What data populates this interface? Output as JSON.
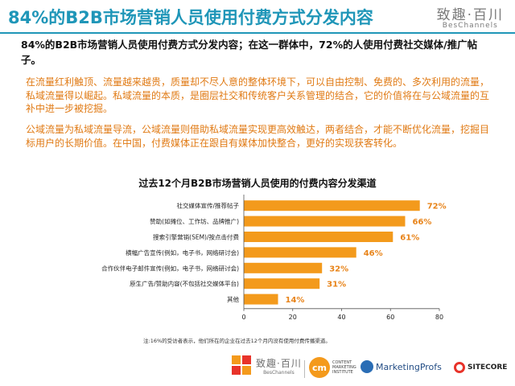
{
  "page": {
    "title": "84%的B2B市场营销人员使用付费方式分发内容",
    "subtitle": "84%的B2B市场营销人员使用付费方式分发内容；在这一群体中，72%的人使用付费社交媒体/推广帖子。",
    "paragraph1": "在流量红利触顶、流量越来越贵，质量却不尽人意的整体环境下，可以自由控制、免费的、多次利用的流量，私域流量得以崛起。私域流量的本质，是圈层社交和传统客户关系管理的结合，它的价值将在与公域流量的互补中进一步被挖掘。",
    "paragraph2": "公域流量为私域流量导流，公域流量则借助私域流量实现更高效触达，两者结合，才能不断优化流量，挖掘目标用户的长期价值。在中国，付费媒体正在跟自有媒体加快整合，更好的实现获客转化。",
    "footnote": "注:16%的受访者表示，他们所在的企业在过去12个月内没有使用付费传播渠道。"
  },
  "brand": {
    "name_cn": "致趣·百川",
    "name_en": "BesChannels"
  },
  "footer": {
    "cmi_mark": "cm",
    "cmi_words": [
      "CONTENT",
      "MARKETING",
      "INSTITUTE"
    ],
    "marketingprofs": "MarketingProfs",
    "sitecore": "SITECORE"
  },
  "colors": {
    "title": "#1f96b8",
    "bar": "#f39a1c",
    "value_label": "#e8841a",
    "paragraph": "#e07a14"
  },
  "chart_data": {
    "type": "bar",
    "orientation": "horizontal",
    "title": "过去12个月B2B市场营销人员使用的付费内容分发渠道",
    "categories": [
      "社交媒体宣传/推荐帖子",
      "赞助(如摊位、工作坊、品牌推广)",
      "搜索引擎营销(SEM)/按点击付费",
      "横幅广告宣传(例如，电子书，网络研讨会)",
      "合作伙伴电子邮件宣传(例如，电子书，网络研讨会)",
      "原生广告/赞助内容(不包括社交媒体平台)",
      "其他"
    ],
    "values": [
      72,
      66,
      61,
      46,
      32,
      31,
      14
    ],
    "value_labels": [
      "72%",
      "66%",
      "61%",
      "46%",
      "32%",
      "31%",
      "14%"
    ],
    "xticks": [
      "0",
      "20",
      "40",
      "60",
      "80"
    ],
    "xlim": [
      0,
      80
    ],
    "grid": false,
    "legend": "none"
  }
}
